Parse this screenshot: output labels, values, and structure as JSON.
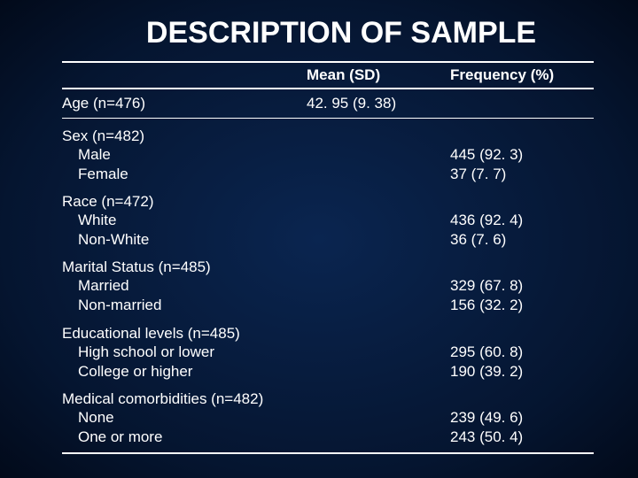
{
  "title": "DESCRIPTION OF SAMPLE",
  "columns": {
    "c1": "",
    "c2": "Mean (SD)",
    "c3": "Frequency (%)"
  },
  "age": {
    "label": "Age (n=476)",
    "mean": "42. 95 (9. 38)"
  },
  "sex": {
    "label": "Sex (n=482)",
    "r1": {
      "label": "Male",
      "freq": "445 (92. 3)"
    },
    "r2": {
      "label": "Female",
      "freq": "37 (7. 7)"
    }
  },
  "race": {
    "label": "Race (n=472)",
    "r1": {
      "label": "White",
      "freq": "436 (92. 4)"
    },
    "r2": {
      "label": "Non-White",
      "freq": "36 (7. 6)"
    }
  },
  "marital": {
    "label": "Marital Status (n=485)",
    "r1": {
      "label": "Married",
      "freq": "329 (67. 8)"
    },
    "r2": {
      "label": "Non-married",
      "freq": "156 (32. 2)"
    }
  },
  "edu": {
    "label": "Educational levels (n=485)",
    "r1": {
      "label": "High school or lower",
      "freq": "295 (60. 8)"
    },
    "r2": {
      "label": "College or higher",
      "freq": "190 (39. 2)"
    }
  },
  "comorb": {
    "label": "Medical comorbidities (n=482)",
    "r1": {
      "label": "None",
      "freq": "239 (49. 6)"
    },
    "r2": {
      "label": "One or more",
      "freq": "243 (50. 4)"
    }
  }
}
